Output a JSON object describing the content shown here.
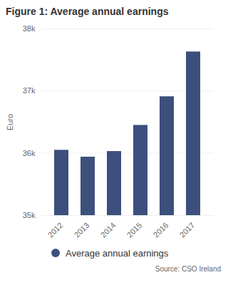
{
  "chart_data": {
    "type": "bar",
    "title": "Figure 1: Average annual earnings",
    "y_label": "Euro",
    "categories": [
      "2012",
      "2013",
      "2014",
      "2015",
      "2016",
      "2017"
    ],
    "series": [
      {
        "name": "Average annual earnings",
        "color": "#3d4f7c",
        "values": [
          36050,
          35940,
          36030,
          36450,
          36910,
          37630
        ]
      }
    ],
    "ylim": [
      35000,
      38000
    ],
    "yticks": [
      {
        "value": 35000,
        "label": "35k"
      },
      {
        "value": 36000,
        "label": "36k"
      },
      {
        "value": 37000,
        "label": "37k"
      },
      {
        "value": 38000,
        "label": "38k"
      }
    ],
    "grid": true,
    "legend": "bottom",
    "caption": "Source: CSO Ireland"
  }
}
